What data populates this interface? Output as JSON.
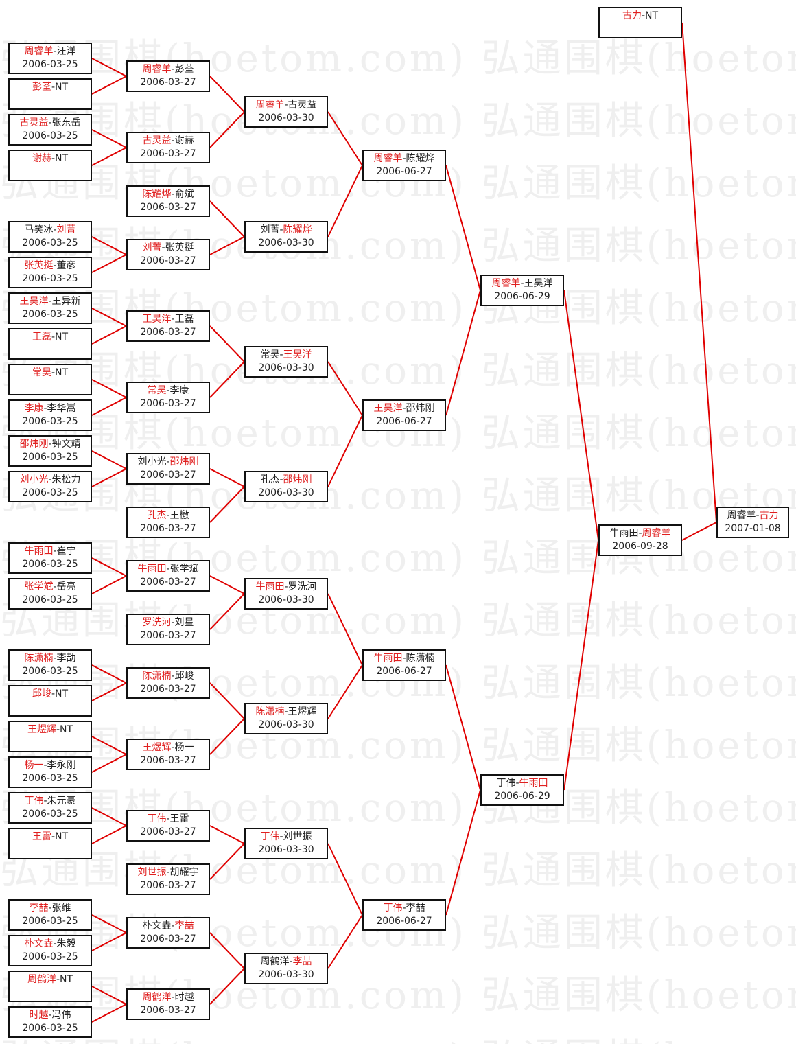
{
  "watermark": "弘通围棋(hoetom.com)",
  "colors": {
    "winner": "#e02020",
    "line": "#e00000",
    "border": "#111111"
  },
  "matches": [
    {
      "p1": "周睿羊",
      "p2": "汪洋",
      "winner": 1,
      "date": "2006-03-25"
    },
    {
      "p1": "彭荃",
      "p2": "NT",
      "winner": 1,
      "date": ""
    },
    {
      "p1": "古灵益",
      "p2": "张东岳",
      "winner": 1,
      "date": "2006-03-25"
    },
    {
      "p1": "谢赫",
      "p2": "NT",
      "winner": 1,
      "date": ""
    },
    {
      "p1": "马笑冰",
      "p2": "刘菁",
      "winner": 2,
      "date": "2006-03-25"
    },
    {
      "p1": "张英挺",
      "p2": "董彦",
      "winner": 1,
      "date": "2006-03-25"
    },
    {
      "p1": "王昊洋",
      "p2": "王异新",
      "winner": 1,
      "date": "2006-03-25"
    },
    {
      "p1": "王磊",
      "p2": "NT",
      "winner": 1,
      "date": ""
    },
    {
      "p1": "常昊",
      "p2": "NT",
      "winner": 1,
      "date": ""
    },
    {
      "p1": "李康",
      "p2": "李华嵩",
      "winner": 1,
      "date": "2006-03-25"
    },
    {
      "p1": "邵炜刚",
      "p2": "钟文靖",
      "winner": 1,
      "date": "2006-03-25"
    },
    {
      "p1": "刘小光",
      "p2": "朱松力",
      "winner": 1,
      "date": "2006-03-25"
    },
    {
      "p1": "牛雨田",
      "p2": "崔宁",
      "winner": 1,
      "date": "2006-03-25"
    },
    {
      "p1": "张学斌",
      "p2": "岳亮",
      "winner": 1,
      "date": "2006-03-25"
    },
    {
      "p1": "陈潇楠",
      "p2": "李劼",
      "winner": 1,
      "date": "2006-03-25"
    },
    {
      "p1": "邱峻",
      "p2": "NT",
      "winner": 1,
      "date": ""
    },
    {
      "p1": "王煜辉",
      "p2": "NT",
      "winner": 1,
      "date": ""
    },
    {
      "p1": "杨一",
      "p2": "李永刚",
      "winner": 1,
      "date": "2006-03-25"
    },
    {
      "p1": "丁伟",
      "p2": "朱元豪",
      "winner": 1,
      "date": "2006-03-25"
    },
    {
      "p1": "王雷",
      "p2": "NT",
      "winner": 1,
      "date": ""
    },
    {
      "p1": "李喆",
      "p2": "张维",
      "winner": 1,
      "date": "2006-03-25"
    },
    {
      "p1": "朴文垚",
      "p2": "朱毅",
      "winner": 1,
      "date": "2006-03-25"
    },
    {
      "p1": "周鹤洋",
      "p2": "NT",
      "winner": 1,
      "date": ""
    },
    {
      "p1": "时越",
      "p2": "冯伟",
      "winner": 1,
      "date": "2006-03-25"
    },
    {
      "p1": "周睿羊",
      "p2": "彭荃",
      "winner": 1,
      "date": "2006-03-27"
    },
    {
      "p1": "古灵益",
      "p2": "谢赫",
      "winner": 1,
      "date": "2006-03-27"
    },
    {
      "p1": "陈耀烨",
      "p2": "俞斌",
      "winner": 1,
      "date": "2006-03-27"
    },
    {
      "p1": "刘菁",
      "p2": "张英挺",
      "winner": 1,
      "date": "2006-03-27"
    },
    {
      "p1": "王昊洋",
      "p2": "王磊",
      "winner": 1,
      "date": "2006-03-27"
    },
    {
      "p1": "常昊",
      "p2": "李康",
      "winner": 1,
      "date": "2006-03-27"
    },
    {
      "p1": "刘小光",
      "p2": "邵炜刚",
      "winner": 2,
      "date": "2006-03-27"
    },
    {
      "p1": "孔杰",
      "p2": "王檄",
      "winner": 1,
      "date": "2006-03-27"
    },
    {
      "p1": "牛雨田",
      "p2": "张学斌",
      "winner": 1,
      "date": "2006-03-27"
    },
    {
      "p1": "罗洗河",
      "p2": "刘星",
      "winner": 1,
      "date": "2006-03-27"
    },
    {
      "p1": "陈潇楠",
      "p2": "邱峻",
      "winner": 1,
      "date": "2006-03-27"
    },
    {
      "p1": "王煜辉",
      "p2": "杨一",
      "winner": 1,
      "date": "2006-03-27"
    },
    {
      "p1": "丁伟",
      "p2": "王雷",
      "winner": 1,
      "date": "2006-03-27"
    },
    {
      "p1": "刘世振",
      "p2": "胡耀宇",
      "winner": 1,
      "date": "2006-03-27"
    },
    {
      "p1": "朴文垚",
      "p2": "李喆",
      "winner": 2,
      "date": "2006-03-27"
    },
    {
      "p1": "周鹤洋",
      "p2": "时越",
      "winner": 1,
      "date": "2006-03-27"
    },
    {
      "p1": "周睿羊",
      "p2": "古灵益",
      "winner": 1,
      "date": "2006-03-30"
    },
    {
      "p1": "刘菁",
      "p2": "陈耀烨",
      "winner": 2,
      "date": "2006-03-30"
    },
    {
      "p1": "常昊",
      "p2": "王昊洋",
      "winner": 2,
      "date": "2006-03-30"
    },
    {
      "p1": "孔杰",
      "p2": "邵炜刚",
      "winner": 2,
      "date": "2006-03-30"
    },
    {
      "p1": "牛雨田",
      "p2": "罗洗河",
      "winner": 1,
      "date": "2006-03-30"
    },
    {
      "p1": "陈潇楠",
      "p2": "王煜辉",
      "winner": 1,
      "date": "2006-03-30"
    },
    {
      "p1": "丁伟",
      "p2": "刘世振",
      "winner": 1,
      "date": "2006-03-30"
    },
    {
      "p1": "周鹤洋",
      "p2": "李喆",
      "winner": 2,
      "date": "2006-03-30"
    },
    {
      "p1": "周睿羊",
      "p2": "陈耀烨",
      "winner": 1,
      "date": "2006-06-27"
    },
    {
      "p1": "王昊洋",
      "p2": "邵炜刚",
      "winner": 1,
      "date": "2006-06-27"
    },
    {
      "p1": "牛雨田",
      "p2": "陈潇楠",
      "winner": 1,
      "date": "2006-06-27"
    },
    {
      "p1": "丁伟",
      "p2": "李喆",
      "winner": 1,
      "date": "2006-06-27"
    },
    {
      "p1": "周睿羊",
      "p2": "王昊洋",
      "winner": 1,
      "date": "2006-06-29"
    },
    {
      "p1": "丁伟",
      "p2": "牛雨田",
      "winner": 2,
      "date": "2006-06-29"
    },
    {
      "p1": "牛雨田",
      "p2": "周睿羊",
      "winner": 2,
      "date": "2006-09-28"
    },
    {
      "p1": "古力",
      "p2": "NT",
      "winner": 1,
      "date": ""
    },
    {
      "p1": "周睿羊",
      "p2": "古力",
      "winner": 2,
      "date": "2007-01-08"
    }
  ]
}
